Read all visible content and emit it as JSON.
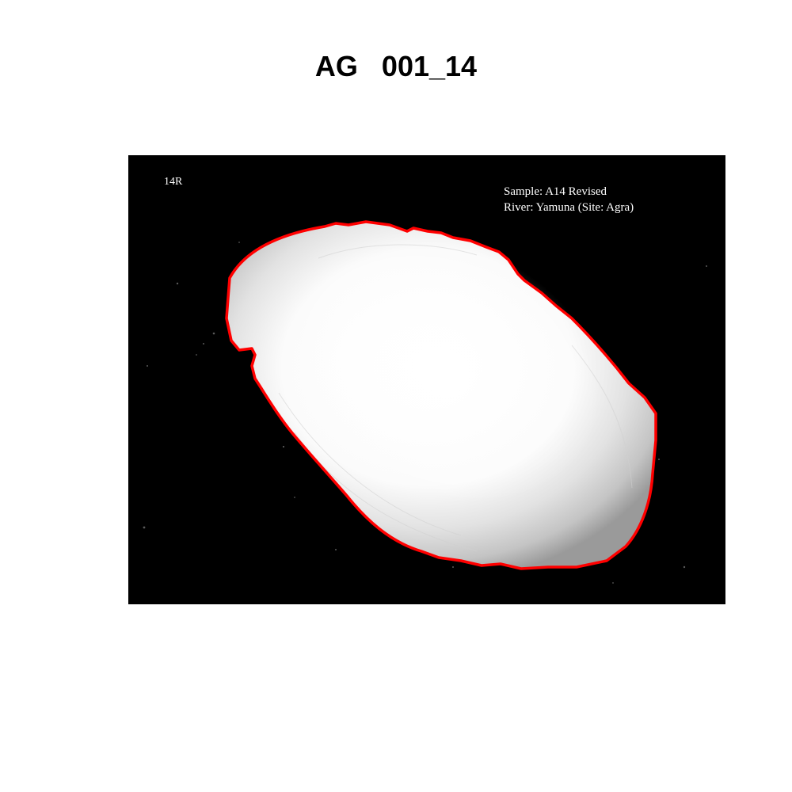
{
  "title": "AG   001_14",
  "image": {
    "corner_label": "14R",
    "sample_line": "Sample: A14 Revised",
    "river_line": "River: Yamuna (Site: Agra)",
    "subject": "otolith",
    "outline_color": "#ff0000",
    "background_color": "#000000"
  }
}
